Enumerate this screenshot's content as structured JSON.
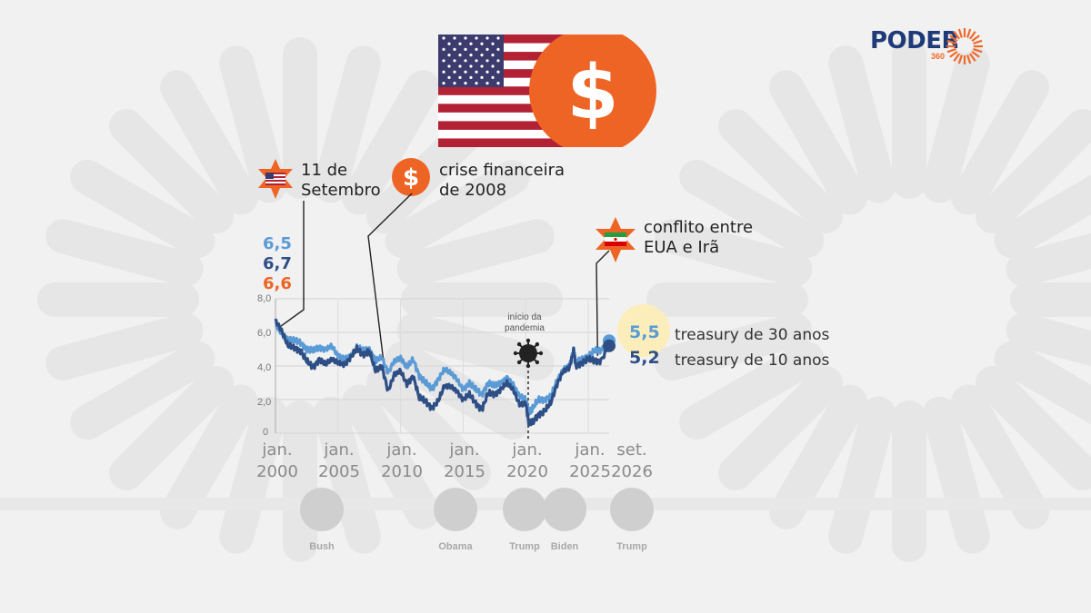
{
  "brand": {
    "name": "PODER",
    "sub": "360"
  },
  "events": [
    {
      "label": "11 de\nSetembro"
    },
    {
      "label": "crise financeira\nde 2008"
    },
    {
      "label": "conflito entre\nEUA e Irã"
    }
  ],
  "start_values": [
    "6,5",
    "6,7",
    "6,6"
  ],
  "end_values": {
    "t30": "5,5",
    "t10": "5,2"
  },
  "series_labels": {
    "t30": "treasury de 30 anos",
    "t10": "treasury de 10 anos"
  },
  "annotation": "início da\npandemia",
  "presidents": [
    "Bush",
    "Obama",
    "Trump",
    "Biden",
    "Trump"
  ],
  "colors": {
    "t30": "#5b9bd5",
    "t10": "#2e4f86",
    "accent": "#ee6424",
    "flag_red": "#b22234",
    "flag_blue": "#3c3b6e"
  },
  "chart_data": {
    "type": "line",
    "x_tick_labels": [
      "jan.\n2000",
      "jan.\n2005",
      "jan.\n2010",
      "jan.\n2015",
      "jan.\n2020",
      "jan.\n2025",
      "set.\n2026"
    ],
    "y_tick_labels": [
      "8,0",
      "6,0",
      "4,0",
      "2,0",
      "0"
    ],
    "ylim": [
      0,
      8
    ],
    "xlim": [
      2000.0,
      2026.67
    ],
    "grid": true,
    "series": [
      {
        "name": "treasury de 30 anos",
        "x": [
          2000.0,
          2000.5,
          2001.0,
          2001.5,
          2002.0,
          2002.5,
          2003.0,
          2003.5,
          2004.0,
          2004.5,
          2005.0,
          2005.5,
          2006.0,
          2006.5,
          2007.0,
          2007.5,
          2008.0,
          2008.5,
          2009.0,
          2009.5,
          2010.0,
          2010.5,
          2011.0,
          2011.5,
          2012.0,
          2012.5,
          2013.0,
          2013.5,
          2014.0,
          2014.5,
          2015.0,
          2015.5,
          2016.0,
          2016.5,
          2017.0,
          2017.5,
          2018.0,
          2018.5,
          2019.0,
          2019.5,
          2020.0,
          2020.25,
          2020.5,
          2021.0,
          2021.5,
          2022.0,
          2022.5,
          2023.0,
          2023.5,
          2023.83,
          2024.0,
          2024.5,
          2025.0,
          2025.5,
          2026.0,
          2026.67
        ],
        "y": [
          6.5,
          5.9,
          5.6,
          5.5,
          5.4,
          5.0,
          4.9,
          5.1,
          5.0,
          5.2,
          4.6,
          4.4,
          4.6,
          5.1,
          4.9,
          5.0,
          4.3,
          4.5,
          3.6,
          4.3,
          4.5,
          3.9,
          4.4,
          3.4,
          3.0,
          2.6,
          3.2,
          3.8,
          3.6,
          3.2,
          2.6,
          3.0,
          2.6,
          2.3,
          3.0,
          2.8,
          3.0,
          3.3,
          2.9,
          2.2,
          2.0,
          1.3,
          1.4,
          2.0,
          2.0,
          2.2,
          3.1,
          3.8,
          4.0,
          5.0,
          4.2,
          4.4,
          4.6,
          4.9,
          4.9,
          5.5
        ]
      },
      {
        "name": "treasury de 10 anos",
        "x": [
          2000.0,
          2000.5,
          2001.0,
          2001.5,
          2002.0,
          2002.5,
          2003.0,
          2003.5,
          2004.0,
          2004.5,
          2005.0,
          2005.5,
          2006.0,
          2006.5,
          2007.0,
          2007.5,
          2008.0,
          2008.5,
          2009.0,
          2009.5,
          2010.0,
          2010.5,
          2011.0,
          2011.5,
          2012.0,
          2012.5,
          2013.0,
          2013.5,
          2014.0,
          2014.5,
          2015.0,
          2015.5,
          2016.0,
          2016.5,
          2017.0,
          2017.5,
          2018.0,
          2018.5,
          2019.0,
          2019.5,
          2020.0,
          2020.25,
          2020.5,
          2021.0,
          2021.5,
          2022.0,
          2022.5,
          2023.0,
          2023.5,
          2023.83,
          2024.0,
          2024.5,
          2025.0,
          2025.5,
          2026.0,
          2026.67
        ],
        "y": [
          6.7,
          6.1,
          5.2,
          5.1,
          4.9,
          4.3,
          3.9,
          4.4,
          4.1,
          4.4,
          4.2,
          4.1,
          4.5,
          5.0,
          4.7,
          4.9,
          3.7,
          4.0,
          2.5,
          3.5,
          3.7,
          2.9,
          3.4,
          2.1,
          1.9,
          1.5,
          1.9,
          2.8,
          2.8,
          2.5,
          2.0,
          2.3,
          1.8,
          1.4,
          2.4,
          2.3,
          2.6,
          3.0,
          2.6,
          1.7,
          1.8,
          0.6,
          0.6,
          1.1,
          1.3,
          1.8,
          2.9,
          3.7,
          3.9,
          4.9,
          4.0,
          4.2,
          4.4,
          4.3,
          4.3,
          5.2
        ]
      }
    ],
    "events": [
      {
        "label": "11 de\nSetembro",
        "x": 2001.7
      },
      {
        "label": "crise financeira\nde 2008",
        "x": 2008.7
      },
      {
        "label": "conflito entre\nEUA e Irã",
        "x": 2025.75
      },
      {
        "label": "início da\npandemia",
        "x": 2020.2
      }
    ]
  }
}
